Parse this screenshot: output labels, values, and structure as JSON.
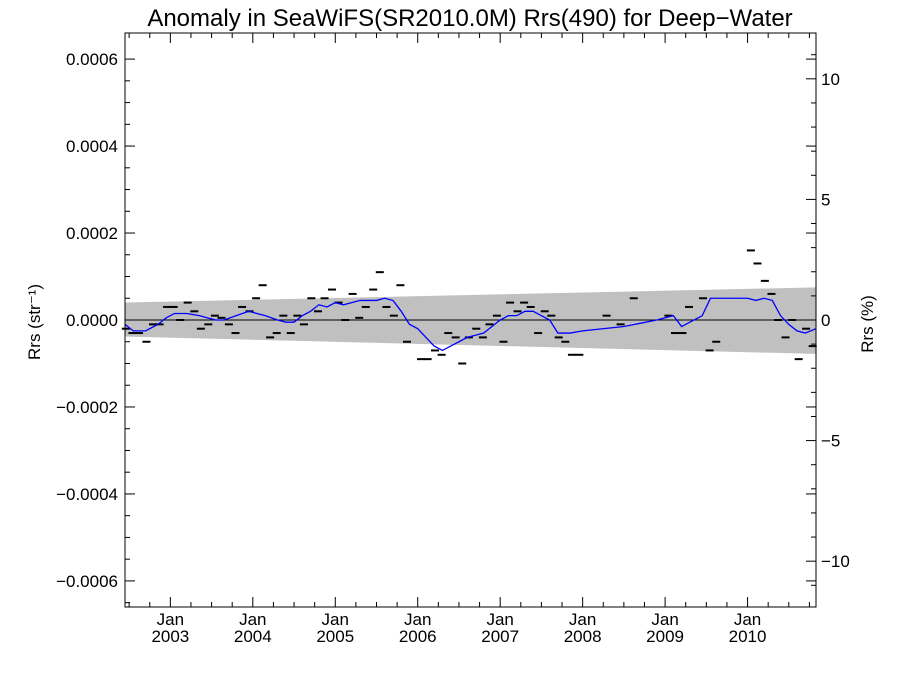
{
  "chart_data": {
    "type": "scatter",
    "title": "Anomaly in SeaWiFS(SR2010.0M) Rrs(490) for Deep−Water",
    "ylabel": "Rrs (str⁻¹)",
    "y2label": "Rrs (%)",
    "xlim": [
      2002.45,
      2010.83
    ],
    "ylim": [
      -0.00066,
      0.00066
    ],
    "y2lim": [
      -11.9,
      11.9
    ],
    "yticks": [
      {
        "value": 0.0006,
        "label": "0.0006"
      },
      {
        "value": 0.0004,
        "label": "0.0004"
      },
      {
        "value": 0.0002,
        "label": "0.0002"
      },
      {
        "value": 0.0,
        "label": "0.0000"
      },
      {
        "value": -0.0002,
        "label": "−0.0002"
      },
      {
        "value": -0.0004,
        "label": "−0.0004"
      },
      {
        "value": -0.0006,
        "label": "−0.0006"
      }
    ],
    "y2ticks": [
      {
        "value": 10,
        "label": "10"
      },
      {
        "value": 5,
        "label": "5"
      },
      {
        "value": 0,
        "label": "0"
      },
      {
        "value": -5,
        "label": "−5"
      },
      {
        "value": -10,
        "label": "−10"
      }
    ],
    "xticks": [
      {
        "value": 2003.0,
        "month": "Jan",
        "year": "2003"
      },
      {
        "value": 2004.0,
        "month": "Jan",
        "year": "2004"
      },
      {
        "value": 2005.0,
        "month": "Jan",
        "year": "2005"
      },
      {
        "value": 2006.0,
        "month": "Jan",
        "year": "2006"
      },
      {
        "value": 2007.0,
        "month": "Jan",
        "year": "2007"
      },
      {
        "value": 2008.0,
        "month": "Jan",
        "year": "2008"
      },
      {
        "value": 2009.0,
        "month": "Jan",
        "year": "2009"
      },
      {
        "value": 2010.0,
        "month": "Jan",
        "year": "2010"
      }
    ],
    "uncertainty_band": {
      "x": [
        2002.45,
        2010.83
      ],
      "upper": [
        4e-05,
        7.5e-05
      ],
      "lower": [
        -3.8e-05,
        -7.8e-05
      ],
      "color": "#c0c0c0"
    },
    "zero_line": 0,
    "series": [
      {
        "style": "markers",
        "color": "#000000",
        "points": [
          [
            2002.46,
            -2e-05
          ],
          [
            2002.54,
            -3e-05
          ],
          [
            2002.62,
            -3e-05
          ],
          [
            2002.71,
            -5e-05
          ],
          [
            2002.79,
            -1e-05
          ],
          [
            2002.87,
            -1e-05
          ],
          [
            2002.96,
            3e-05
          ],
          [
            2003.04,
            3e-05
          ],
          [
            2003.12,
            0.0
          ],
          [
            2003.21,
            4e-05
          ],
          [
            2003.29,
            2e-05
          ],
          [
            2003.37,
            -2e-05
          ],
          [
            2003.46,
            -1e-05
          ],
          [
            2003.54,
            1e-05
          ],
          [
            2003.62,
            5e-06
          ],
          [
            2003.71,
            -1e-05
          ],
          [
            2003.79,
            -3e-05
          ],
          [
            2003.87,
            3e-05
          ],
          [
            2003.96,
            2e-05
          ],
          [
            2004.04,
            5e-05
          ],
          [
            2004.12,
            8e-05
          ],
          [
            2004.21,
            -4e-05
          ],
          [
            2004.29,
            -3e-05
          ],
          [
            2004.37,
            1e-05
          ],
          [
            2004.46,
            -3e-05
          ],
          [
            2004.54,
            1e-05
          ],
          [
            2004.62,
            -1e-05
          ],
          [
            2004.71,
            5e-05
          ],
          [
            2004.79,
            2e-05
          ],
          [
            2004.87,
            5e-05
          ],
          [
            2004.96,
            7e-05
          ],
          [
            2005.04,
            4e-05
          ],
          [
            2005.12,
            0.0
          ],
          [
            2005.21,
            6e-05
          ],
          [
            2005.29,
            5e-06
          ],
          [
            2005.37,
            3e-05
          ],
          [
            2005.46,
            7e-05
          ],
          [
            2005.54,
            0.00011
          ],
          [
            2005.62,
            3e-05
          ],
          [
            2005.71,
            1e-05
          ],
          [
            2005.79,
            8e-05
          ],
          [
            2005.87,
            -5e-05
          ],
          [
            2006.04,
            -9e-05
          ],
          [
            2006.12,
            -9e-05
          ],
          [
            2006.21,
            -7e-05
          ],
          [
            2006.29,
            -8e-05
          ],
          [
            2006.37,
            -3e-05
          ],
          [
            2006.46,
            -4e-05
          ],
          [
            2006.54,
            -0.0001
          ],
          [
            2006.62,
            -4e-05
          ],
          [
            2006.71,
            -2e-05
          ],
          [
            2006.79,
            -4e-05
          ],
          [
            2006.87,
            -1e-05
          ],
          [
            2006.96,
            1e-05
          ],
          [
            2007.04,
            -5e-05
          ],
          [
            2007.12,
            4e-05
          ],
          [
            2007.21,
            2e-05
          ],
          [
            2007.29,
            4e-05
          ],
          [
            2007.37,
            3e-05
          ],
          [
            2007.46,
            -3e-05
          ],
          [
            2007.54,
            2e-05
          ],
          [
            2007.62,
            1e-05
          ],
          [
            2007.71,
            -4e-05
          ],
          [
            2007.79,
            -5e-05
          ],
          [
            2007.87,
            -8e-05
          ],
          [
            2007.96,
            -8e-05
          ],
          [
            2008.29,
            1e-05
          ],
          [
            2008.46,
            -1e-05
          ],
          [
            2008.62,
            5e-05
          ],
          [
            2009.04,
            1e-05
          ],
          [
            2009.12,
            -3e-05
          ],
          [
            2009.21,
            -3e-05
          ],
          [
            2009.29,
            3e-05
          ],
          [
            2009.46,
            5e-05
          ],
          [
            2009.54,
            -7e-05
          ],
          [
            2009.62,
            -5e-05
          ],
          [
            2010.04,
            0.00016
          ],
          [
            2010.12,
            0.00013
          ],
          [
            2010.21,
            9e-05
          ],
          [
            2010.29,
            6e-05
          ],
          [
            2010.37,
            0.0
          ],
          [
            2010.46,
            -4e-05
          ],
          [
            2010.54,
            0.0
          ],
          [
            2010.62,
            -9e-05
          ],
          [
            2010.71,
            -2e-05
          ],
          [
            2010.79,
            -6e-05
          ]
        ]
      },
      {
        "style": "line",
        "color": "#0000ff",
        "points": [
          [
            2002.45,
            -1e-05
          ],
          [
            2002.55,
            -2.5e-05
          ],
          [
            2002.7,
            -2.5e-05
          ],
          [
            2002.85,
            -1e-05
          ],
          [
            2002.95,
            5e-06
          ],
          [
            2003.05,
            1.5e-05
          ],
          [
            2003.2,
            1.5e-05
          ],
          [
            2003.35,
            1e-05
          ],
          [
            2003.45,
            5e-06
          ],
          [
            2003.55,
            0.0
          ],
          [
            2003.65,
            0.0
          ],
          [
            2003.8,
            1e-05
          ],
          [
            2003.95,
            2e-05
          ],
          [
            2004.05,
            1.5e-05
          ],
          [
            2004.15,
            1e-05
          ],
          [
            2004.3,
            0.0
          ],
          [
            2004.4,
            -5e-06
          ],
          [
            2004.5,
            -5e-06
          ],
          [
            2004.6,
            1e-05
          ],
          [
            2004.7,
            2e-05
          ],
          [
            2004.8,
            3.5e-05
          ],
          [
            2004.9,
            3e-05
          ],
          [
            2005.0,
            4e-05
          ],
          [
            2005.1,
            3.5e-05
          ],
          [
            2005.2,
            4e-05
          ],
          [
            2005.3,
            4.5e-05
          ],
          [
            2005.4,
            4.5e-05
          ],
          [
            2005.5,
            4.5e-05
          ],
          [
            2005.6,
            5e-05
          ],
          [
            2005.7,
            4.5e-05
          ],
          [
            2005.8,
            2e-05
          ],
          [
            2005.9,
            -1e-05
          ],
          [
            2006.0,
            -2e-05
          ],
          [
            2006.1,
            -4e-05
          ],
          [
            2006.2,
            -6e-05
          ],
          [
            2006.3,
            -7e-05
          ],
          [
            2006.4,
            -6e-05
          ],
          [
            2006.5,
            -5e-05
          ],
          [
            2006.6,
            -4e-05
          ],
          [
            2006.7,
            -3.5e-05
          ],
          [
            2006.8,
            -3e-05
          ],
          [
            2006.9,
            -1.5e-05
          ],
          [
            2007.0,
            0.0
          ],
          [
            2007.1,
            1e-05
          ],
          [
            2007.2,
            1e-05
          ],
          [
            2007.3,
            2e-05
          ],
          [
            2007.4,
            2e-05
          ],
          [
            2007.5,
            1e-05
          ],
          [
            2007.6,
            0.0
          ],
          [
            2007.7,
            -3e-05
          ],
          [
            2007.8,
            -3e-05
          ],
          [
            2007.85,
            -3e-05
          ],
          [
            2008.0,
            -2.5e-05
          ],
          [
            2008.5,
            -1.5e-05
          ],
          [
            2008.9,
            0.0
          ],
          [
            2009.1,
            1e-05
          ],
          [
            2009.2,
            -1.5e-05
          ],
          [
            2009.3,
            -5e-06
          ],
          [
            2009.45,
            1e-05
          ],
          [
            2009.55,
            5e-05
          ],
          [
            2010.0,
            5e-05
          ],
          [
            2010.1,
            4.5e-05
          ],
          [
            2010.2,
            5e-05
          ],
          [
            2010.3,
            4.5e-05
          ],
          [
            2010.4,
            1e-05
          ],
          [
            2010.5,
            -1e-05
          ],
          [
            2010.6,
            -2.5e-05
          ],
          [
            2010.7,
            -3e-05
          ],
          [
            2010.83,
            -2e-05
          ]
        ]
      }
    ]
  }
}
